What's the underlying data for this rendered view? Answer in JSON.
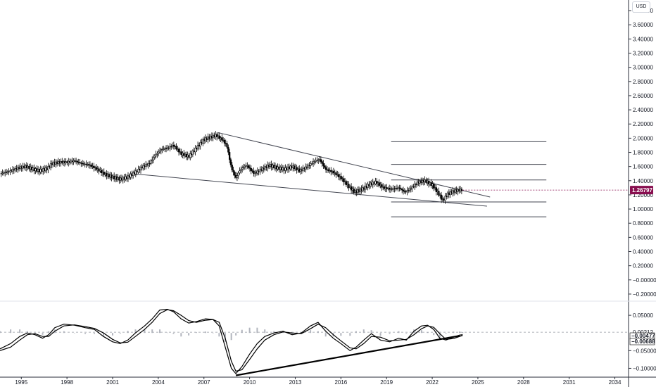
{
  "currency_button": "USD",
  "chart_data": [
    {
      "type": "candlestick",
      "pane": "price",
      "y_ticks": [
        "3.80000",
        "3.60000",
        "3.40000",
        "3.20000",
        "3.00000",
        "2.80000",
        "2.60000",
        "2.40000",
        "2.20000",
        "2.00000",
        "1.80000",
        "1.60000",
        "1.40000",
        "1.20000",
        "1.00000",
        "0.80000",
        "0.60000",
        "0.40000",
        "0.20000",
        "−0.00000",
        "−0.20000"
      ],
      "y_tick_values": [
        3.8,
        3.6,
        3.4,
        3.2,
        3.0,
        2.8,
        2.6,
        2.4,
        2.2,
        2.0,
        1.8,
        1.6,
        1.4,
        1.2,
        1.0,
        0.8,
        0.6,
        0.4,
        0.2,
        0.0,
        -0.2
      ],
      "ylim": [
        -0.3,
        3.95
      ],
      "x_ticks": [
        "1995",
        "1998",
        "2001",
        "2004",
        "2007",
        "2010",
        "2013",
        "2016",
        "2019",
        "2022",
        "2025",
        "2028",
        "2031",
        "2034"
      ],
      "x_tick_values": [
        1995,
        1998,
        2001,
        2004,
        2007,
        2010,
        2013,
        2016,
        2019,
        2022,
        2025,
        2028,
        2031,
        2034
      ],
      "xlim": [
        1993.6,
        2034.9
      ],
      "last_price": {
        "label": "1.26797",
        "value": 1.268,
        "color": "#880e4f"
      },
      "price_path": [
        [
          1993.6,
          1.5
        ],
        [
          1994.2,
          1.53
        ],
        [
          1994.8,
          1.58
        ],
        [
          1995.3,
          1.6
        ],
        [
          1995.8,
          1.56
        ],
        [
          1996.2,
          1.54
        ],
        [
          1996.7,
          1.57
        ],
        [
          1997.0,
          1.64
        ],
        [
          1997.5,
          1.66
        ],
        [
          1998.0,
          1.66
        ],
        [
          1998.5,
          1.68
        ],
        [
          1999.0,
          1.64
        ],
        [
          1999.5,
          1.62
        ],
        [
          2000.0,
          1.56
        ],
        [
          2000.5,
          1.49
        ],
        [
          2001.0,
          1.45
        ],
        [
          2001.5,
          1.42
        ],
        [
          2002.0,
          1.45
        ],
        [
          2002.5,
          1.52
        ],
        [
          2003.0,
          1.6
        ],
        [
          2003.4,
          1.64
        ],
        [
          2003.8,
          1.76
        ],
        [
          2004.2,
          1.84
        ],
        [
          2004.6,
          1.86
        ],
        [
          2005.0,
          1.9
        ],
        [
          2005.5,
          1.78
        ],
        [
          2006.0,
          1.74
        ],
        [
          2006.5,
          1.86
        ],
        [
          2007.0,
          1.98
        ],
        [
          2007.5,
          2.02
        ],
        [
          2007.8,
          2.04
        ],
        [
          2008.2,
          1.98
        ],
        [
          2008.5,
          1.9
        ],
        [
          2008.8,
          1.58
        ],
        [
          2009.1,
          1.44
        ],
        [
          2009.4,
          1.56
        ],
        [
          2009.8,
          1.62
        ],
        [
          2010.3,
          1.5
        ],
        [
          2010.8,
          1.56
        ],
        [
          2011.3,
          1.62
        ],
        [
          2011.8,
          1.58
        ],
        [
          2012.3,
          1.56
        ],
        [
          2012.8,
          1.6
        ],
        [
          2013.3,
          1.54
        ],
        [
          2013.8,
          1.6
        ],
        [
          2014.3,
          1.68
        ],
        [
          2014.6,
          1.7
        ],
        [
          2015.0,
          1.56
        ],
        [
          2015.5,
          1.52
        ],
        [
          2016.0,
          1.44
        ],
        [
          2016.5,
          1.32
        ],
        [
          2016.9,
          1.24
        ],
        [
          2017.4,
          1.28
        ],
        [
          2017.9,
          1.35
        ],
        [
          2018.3,
          1.38
        ],
        [
          2018.8,
          1.3
        ],
        [
          2019.3,
          1.28
        ],
        [
          2019.8,
          1.3
        ],
        [
          2020.2,
          1.24
        ],
        [
          2020.6,
          1.29
        ],
        [
          2021.0,
          1.37
        ],
        [
          2021.5,
          1.4
        ],
        [
          2022.0,
          1.34
        ],
        [
          2022.4,
          1.22
        ],
        [
          2022.7,
          1.12
        ],
        [
          2023.0,
          1.21
        ],
        [
          2023.4,
          1.25
        ],
        [
          2023.8,
          1.27
        ],
        [
          2024.0,
          1.268
        ]
      ]
    },
    {
      "type": "line",
      "pane": "oscillator",
      "y_ticks": [
        "0.05000",
        "−0.05000",
        "−0.10000"
      ],
      "y_tick_values": [
        0.05,
        -0.05,
        -0.1
      ],
      "ylim": [
        -0.125,
        0.09
      ],
      "zero_label": {
        "label": "0.00212",
        "value": 0.00212
      },
      "value_labels": [
        {
          "label": "−0.00477",
          "value": -0.00477,
          "color": "#000000"
        },
        {
          "label": "−0.00688",
          "value": -0.00688,
          "color": "#000000"
        }
      ],
      "series": [
        {
          "points": [
            [
              1993.6,
              -0.045
            ],
            [
              1994.3,
              -0.03
            ],
            [
              1994.9,
              -0.01
            ],
            [
              1995.4,
              0.0
            ],
            [
              1995.9,
              -0.005
            ],
            [
              1996.4,
              -0.015
            ],
            [
              1996.8,
              -0.005
            ],
            [
              1997.2,
              0.015
            ],
            [
              1997.8,
              0.025
            ],
            [
              1998.5,
              0.022
            ],
            [
              1999.2,
              0.015
            ],
            [
              1999.8,
              0.01
            ],
            [
              2000.4,
              -0.01
            ],
            [
              2001.0,
              -0.025
            ],
            [
              2001.5,
              -0.03
            ],
            [
              2002.0,
              -0.02
            ],
            [
              2002.5,
              0.0
            ],
            [
              2003.1,
              0.02
            ],
            [
              2003.6,
              0.04
            ],
            [
              2004.1,
              0.065
            ],
            [
              2004.6,
              0.067
            ],
            [
              2005.0,
              0.06
            ],
            [
              2005.5,
              0.04
            ],
            [
              2006.0,
              0.028
            ],
            [
              2006.5,
              0.032
            ],
            [
              2007.1,
              0.04
            ],
            [
              2007.6,
              0.038
            ],
            [
              2008.0,
              0.02
            ],
            [
              2008.4,
              -0.04
            ],
            [
              2008.8,
              -0.1
            ],
            [
              2009.1,
              -0.115
            ],
            [
              2009.5,
              -0.095
            ],
            [
              2010.0,
              -0.06
            ],
            [
              2010.5,
              -0.03
            ],
            [
              2011.0,
              -0.01
            ],
            [
              2011.6,
              0.0
            ],
            [
              2012.2,
              0.005
            ],
            [
              2012.8,
              -0.005
            ],
            [
              2013.4,
              0.0
            ],
            [
              2014.0,
              0.02
            ],
            [
              2014.5,
              0.03
            ],
            [
              2015.0,
              0.005
            ],
            [
              2015.5,
              -0.015
            ],
            [
              2016.0,
              -0.03
            ],
            [
              2016.6,
              -0.05
            ],
            [
              2017.0,
              -0.04
            ],
            [
              2017.5,
              -0.02
            ],
            [
              2018.0,
              -0.002
            ],
            [
              2018.6,
              -0.02
            ],
            [
              2019.2,
              -0.025
            ],
            [
              2019.8,
              -0.015
            ],
            [
              2020.3,
              -0.02
            ],
            [
              2020.8,
              0.005
            ],
            [
              2021.3,
              0.02
            ],
            [
              2021.7,
              0.022
            ],
            [
              2022.1,
              0.01
            ],
            [
              2022.5,
              -0.015
            ],
            [
              2022.9,
              -0.02
            ],
            [
              2023.4,
              -0.012
            ],
            [
              2023.8,
              -0.006
            ],
            [
              2024.0,
              -0.00477
            ]
          ]
        },
        {
          "points": [
            [
              1993.6,
              -0.05
            ],
            [
              1994.3,
              -0.04
            ],
            [
              1994.9,
              -0.02
            ],
            [
              1995.4,
              -0.005
            ],
            [
              1995.9,
              -0.002
            ],
            [
              1996.4,
              -0.01
            ],
            [
              1996.8,
              -0.01
            ],
            [
              1997.2,
              0.005
            ],
            [
              1997.8,
              0.02
            ],
            [
              1998.5,
              0.023
            ],
            [
              1999.2,
              0.018
            ],
            [
              1999.8,
              0.013
            ],
            [
              2000.4,
              0.0
            ],
            [
              2001.0,
              -0.018
            ],
            [
              2001.5,
              -0.028
            ],
            [
              2002.0,
              -0.026
            ],
            [
              2002.5,
              -0.01
            ],
            [
              2003.1,
              0.01
            ],
            [
              2003.6,
              0.03
            ],
            [
              2004.1,
              0.055
            ],
            [
              2004.6,
              0.066
            ],
            [
              2005.0,
              0.063
            ],
            [
              2005.5,
              0.05
            ],
            [
              2006.0,
              0.035
            ],
            [
              2006.5,
              0.03
            ],
            [
              2007.1,
              0.036
            ],
            [
              2007.6,
              0.038
            ],
            [
              2008.0,
              0.03
            ],
            [
              2008.4,
              -0.015
            ],
            [
              2008.8,
              -0.08
            ],
            [
              2009.1,
              -0.108
            ],
            [
              2009.5,
              -0.104
            ],
            [
              2010.0,
              -0.075
            ],
            [
              2010.5,
              -0.045
            ],
            [
              2011.0,
              -0.02
            ],
            [
              2011.6,
              -0.005
            ],
            [
              2012.2,
              0.003
            ],
            [
              2012.8,
              0.0
            ],
            [
              2013.4,
              -0.002
            ],
            [
              2014.0,
              0.012
            ],
            [
              2014.5,
              0.025
            ],
            [
              2015.0,
              0.015
            ],
            [
              2015.5,
              -0.005
            ],
            [
              2016.0,
              -0.022
            ],
            [
              2016.6,
              -0.042
            ],
            [
              2017.0,
              -0.045
            ],
            [
              2017.5,
              -0.03
            ],
            [
              2018.0,
              -0.01
            ],
            [
              2018.6,
              -0.012
            ],
            [
              2019.2,
              -0.022
            ],
            [
              2019.8,
              -0.02
            ],
            [
              2020.3,
              -0.018
            ],
            [
              2020.8,
              -0.005
            ],
            [
              2021.3,
              0.012
            ],
            [
              2021.7,
              0.02
            ],
            [
              2022.1,
              0.016
            ],
            [
              2022.5,
              -0.002
            ],
            [
              2022.9,
              -0.018
            ],
            [
              2023.4,
              -0.016
            ],
            [
              2023.8,
              -0.01
            ],
            [
              2024.0,
              -0.00688
            ]
          ]
        }
      ]
    }
  ],
  "drawings": {
    "upper_trendline": [
      [
        2007.9,
        2.08
      ],
      [
        2025.8,
        1.17
      ]
    ],
    "lower_trendline": [
      [
        2002.2,
        1.5
      ],
      [
        2025.6,
        1.04
      ]
    ],
    "bottom_trendline_osc": [
      [
        2009.1,
        -0.12
      ],
      [
        2023.8,
        -0.008
      ]
    ],
    "horizontal_levels": [
      1.95,
      1.63,
      1.41,
      1.1,
      0.89
    ],
    "levels_x_range": [
      2019.3,
      2029.5
    ]
  }
}
